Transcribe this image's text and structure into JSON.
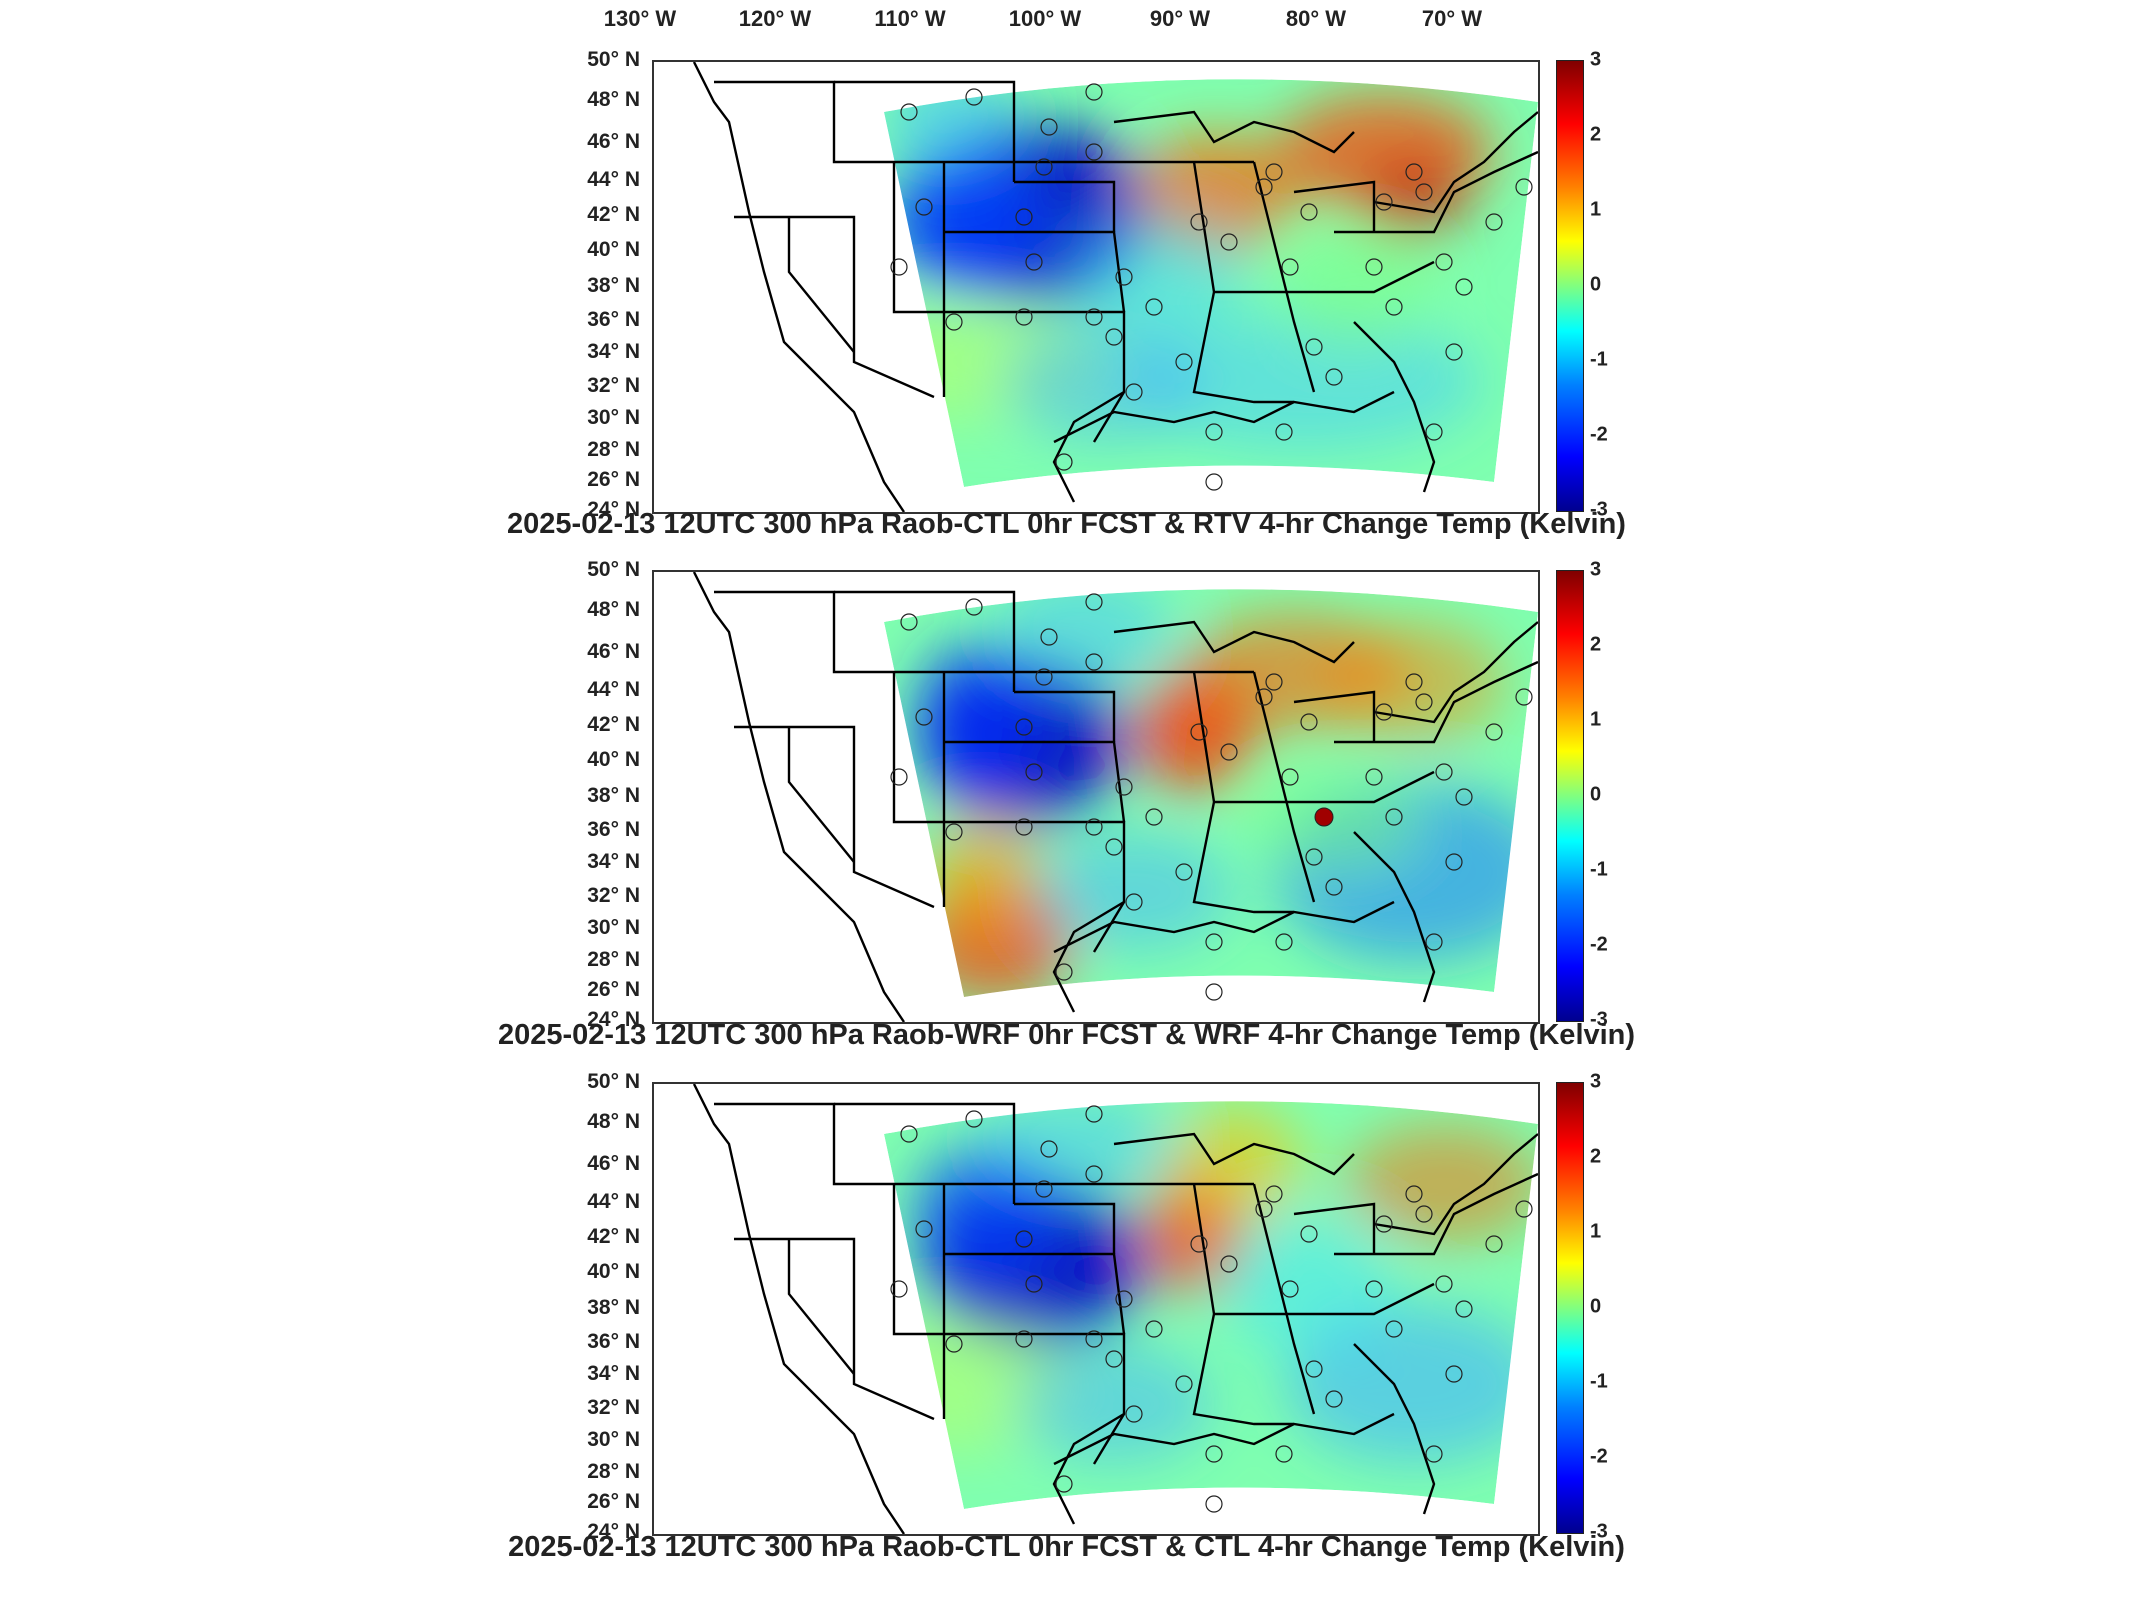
{
  "longitude_labels": [
    "130° W",
    "120° W",
    "110° W",
    "100° W",
    "90° W",
    "80° W",
    "70° W"
  ],
  "latitude_labels": [
    "50° N",
    "48° N",
    "46° N",
    "44° N",
    "42° N",
    "40° N",
    "38° N",
    "36° N",
    "34° N",
    "32° N",
    "30° N",
    "28° N",
    "26° N",
    "24° N"
  ],
  "colorbar": {
    "ticks": [
      "3",
      "2",
      "1",
      "0",
      "-1",
      "-2",
      "-3"
    ],
    "range": [
      -3,
      3
    ],
    "colormap": "jet"
  },
  "panels": [
    {
      "title": "2025-02-13 12UTC 300 hPa Raob-CTL 0hr FCST & RTV 4-hr Change Temp (Kelvin)"
    },
    {
      "title": "2025-02-13 12UTC 300 hPa Raob-WRF 0hr FCST & WRF 4-hr Change Temp (Kelvin)"
    },
    {
      "title": "2025-02-13 12UTC 300 hPa Raob-CTL 0hr FCST & CTL 4-hr Change Temp (Kelvin)"
    }
  ],
  "colors": {
    "cold": "#0000c8",
    "warm": "#ff3000",
    "neutral": "#80ff80",
    "border": "#000000"
  }
}
